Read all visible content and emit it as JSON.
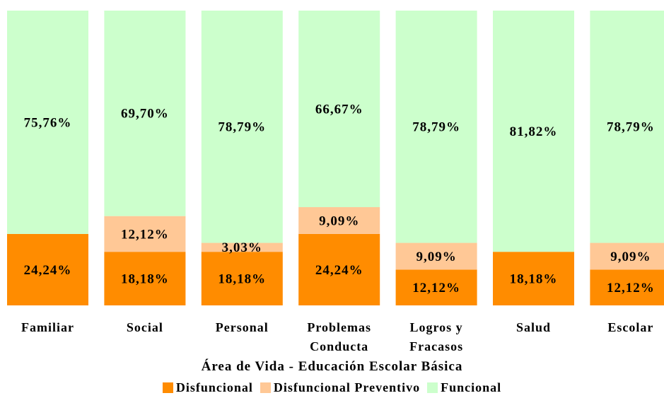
{
  "chart_data": {
    "type": "stacked_bar_100",
    "xlabel": "Área de Vida - Educación Escolar Básica",
    "categories": [
      "Familiar",
      "Social",
      "Personal",
      "Problemas Conducta",
      "Logros y Fracasos",
      "Salud",
      "Escolar"
    ],
    "ylim": [
      0,
      100
    ],
    "legend": "bottom",
    "series": [
      {
        "name": "Disfuncional",
        "color": "#ff8c00",
        "values": [
          24.24,
          18.18,
          18.18,
          24.24,
          12.12,
          18.18,
          12.12
        ],
        "value_labels": [
          "24,24%",
          "18,18%",
          "18,18%",
          "24,24%",
          "12,12%",
          "18,18%",
          "12,12%"
        ]
      },
      {
        "name": "Disfuncional Preventivo",
        "color": "#ffc896",
        "values": [
          0,
          12.12,
          3.03,
          9.09,
          9.09,
          0,
          9.09
        ],
        "value_labels": [
          null,
          "12,12%",
          "3,03%",
          "9,09%",
          "9,09%",
          null,
          "9,09%"
        ]
      },
      {
        "name": "Funcional",
        "color": "#ccffcc",
        "values": [
          75.76,
          69.7,
          78.79,
          66.67,
          78.79,
          81.82,
          78.79
        ],
        "value_labels": [
          "75,76%",
          "69,70%",
          "78,79%",
          "66,67%",
          "78,79%",
          "81,82%",
          "78,79%"
        ]
      }
    ]
  }
}
